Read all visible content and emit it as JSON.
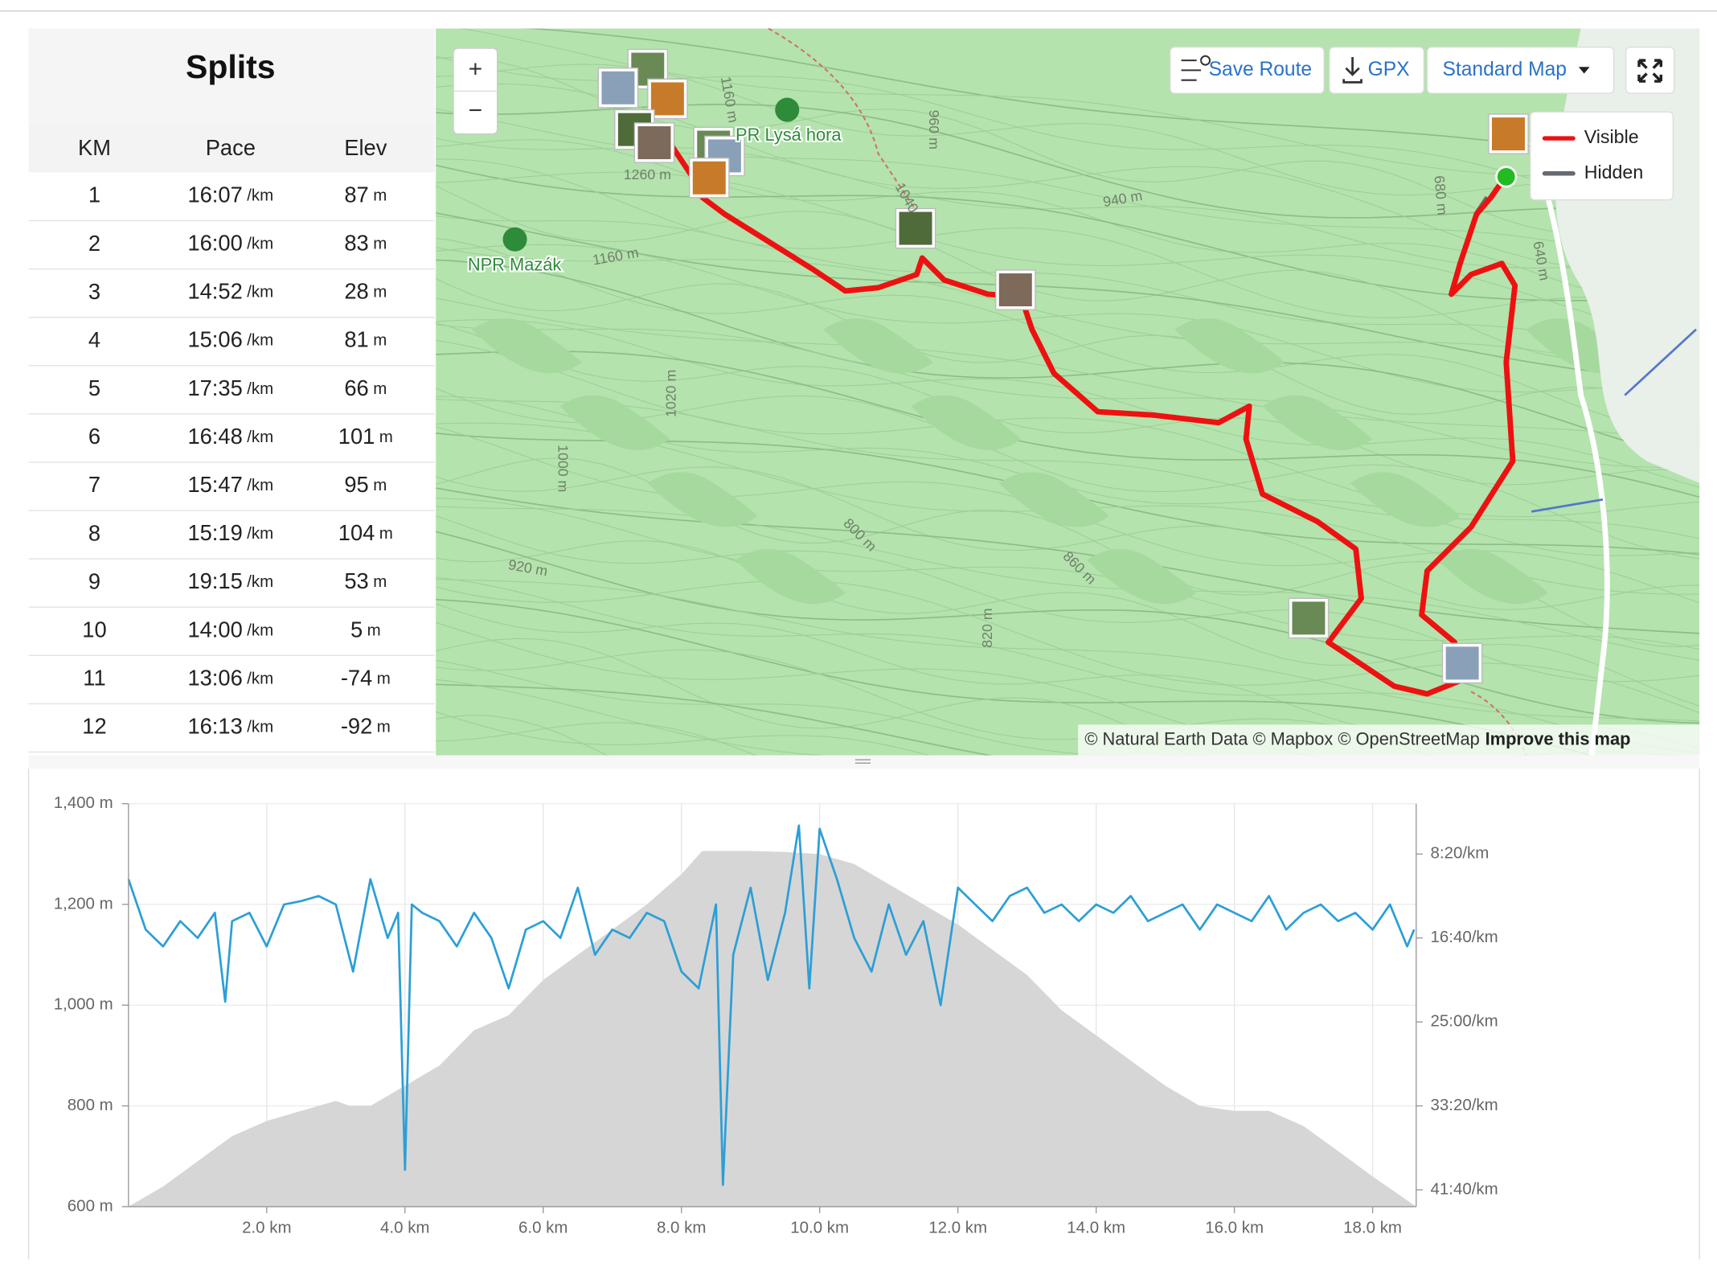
{
  "splits": {
    "title": "Splits",
    "headers": [
      "KM",
      "Pace",
      "Elev"
    ],
    "pace_unit": "/km",
    "elev_unit": "m",
    "rows": [
      [
        "1",
        "16:07",
        "87"
      ],
      [
        "2",
        "16:00",
        "83"
      ],
      [
        "3",
        "14:52",
        "28"
      ],
      [
        "4",
        "15:06",
        "81"
      ],
      [
        "5",
        "17:35",
        "66"
      ],
      [
        "6",
        "16:48",
        "101"
      ],
      [
        "7",
        "15:47",
        "95"
      ],
      [
        "8",
        "15:19",
        "104"
      ],
      [
        "9",
        "19:15",
        "53"
      ],
      [
        "10",
        "14:00",
        "5"
      ],
      [
        "11",
        "13:06",
        "-74"
      ],
      [
        "12",
        "16:13",
        "-92"
      ]
    ]
  },
  "map": {
    "zoom_in": "+",
    "zoom_out": "−",
    "buttons": [
      "Save Route",
      "GPX",
      "Standard Map"
    ],
    "legend": [
      {
        "name": "Visible",
        "color": "#ee1111"
      },
      {
        "name": "Hidden",
        "color": "#666a70"
      }
    ],
    "places": [
      "PR Lysá hora",
      "NPR Mazák"
    ],
    "contour_labels": [
      "1160 m",
      "1260 m",
      "1160 m",
      "960 m",
      "1040",
      "940 m",
      "680 m",
      "640 m",
      "1020 m",
      "1000 m",
      "800 m",
      "860 m",
      "920 m",
      "820 m"
    ],
    "attribution": "© Natural Earth Data © Mapbox © OpenStreetMap",
    "improve": "Improve this map"
  },
  "chart_data": {
    "type": "line",
    "xlim": [
      0,
      18.63
    ],
    "xticks": [
      {
        "value": 2,
        "label": "2.0 km"
      },
      {
        "value": 4,
        "label": "4.0 km"
      },
      {
        "value": 6,
        "label": "6.0 km"
      },
      {
        "value": 8,
        "label": "8.0 km"
      },
      {
        "value": 10,
        "label": "10.0 km"
      },
      {
        "value": 12,
        "label": "12.0 km"
      },
      {
        "value": 14,
        "label": "14.0 km"
      },
      {
        "value": 16,
        "label": "16.0 km"
      },
      {
        "value": 18,
        "label": "18.0 km"
      }
    ],
    "ylim": [
      600,
      1400
    ],
    "yticks": [
      {
        "value": 600,
        "label": "600 m"
      },
      {
        "value": 800,
        "label": "800 m"
      },
      {
        "value": 1000,
        "label": "1,000 m"
      },
      {
        "value": 1200,
        "label": "1,200 m"
      },
      {
        "value": 1400,
        "label": "1,400 m"
      }
    ],
    "y2lim": [
      200,
      2600
    ],
    "y2_inverted": true,
    "y2ticks": [
      {
        "value": 500,
        "label": "8:20/km"
      },
      {
        "value": 1000,
        "label": "16:40/km"
      },
      {
        "value": 1500,
        "label": "25:00/km"
      },
      {
        "value": 2000,
        "label": "33:20/km"
      },
      {
        "value": 2500,
        "label": "41:40/km"
      }
    ],
    "grid": true,
    "series": [
      {
        "type": "area",
        "color": "#d6d6d6",
        "x": [
          0,
          0.5,
          1,
          1.5,
          2,
          2.5,
          3,
          3.2,
          3.5,
          4,
          4.5,
          5,
          5.5,
          6,
          6.5,
          7,
          7.5,
          8,
          8.3,
          9,
          9.5,
          10,
          10.5,
          11,
          11.5,
          12,
          12.5,
          13,
          13.5,
          14,
          14.5,
          15,
          15.5,
          16,
          16.5,
          17,
          17.5,
          18,
          18.63
        ],
        "values": [
          600,
          640,
          690,
          740,
          770,
          790,
          810,
          800,
          800,
          840,
          880,
          950,
          980,
          1050,
          1100,
          1150,
          1200,
          1260,
          1306,
          1306,
          1304,
          1300,
          1280,
          1240,
          1200,
          1160,
          1110,
          1060,
          990,
          940,
          890,
          840,
          800,
          790,
          790,
          760,
          710,
          660,
          600
        ]
      },
      {
        "type": "line",
        "color": "#2c9fd6",
        "axis": "y2",
        "x": [
          0,
          0.25,
          0.5,
          0.75,
          1,
          1.25,
          1.4,
          1.5,
          1.75,
          2,
          2.25,
          2.5,
          2.75,
          3,
          3.25,
          3.5,
          3.75,
          3.9,
          4,
          4.1,
          4.25,
          4.5,
          4.75,
          5,
          5.25,
          5.5,
          5.75,
          6,
          6.25,
          6.5,
          6.75,
          7,
          7.25,
          7.5,
          7.75,
          8,
          8.25,
          8.5,
          8.6,
          8.75,
          9,
          9.25,
          9.5,
          9.7,
          9.85,
          10,
          10.25,
          10.5,
          10.75,
          11,
          11.25,
          11.5,
          11.75,
          12,
          12.25,
          12.5,
          12.75,
          13,
          13.25,
          13.5,
          13.75,
          14,
          14.25,
          14.5,
          14.75,
          15,
          15.25,
          15.5,
          15.75,
          16,
          16.25,
          16.5,
          16.75,
          17,
          17.25,
          17.5,
          17.75,
          18,
          18.25,
          18.5,
          18.6
        ],
        "values": [
          650,
          950,
          1050,
          900,
          1000,
          850,
          1380,
          900,
          850,
          1050,
          800,
          780,
          750,
          800,
          1200,
          650,
          1000,
          850,
          2380,
          800,
          850,
          900,
          1050,
          850,
          1000,
          1300,
          950,
          900,
          1000,
          700,
          1100,
          950,
          1000,
          850,
          900,
          1200,
          1300,
          800,
          2470,
          1100,
          700,
          1250,
          850,
          330,
          1300,
          350,
          650,
          1000,
          1200,
          800,
          1100,
          900,
          1400,
          700,
          800,
          900,
          750,
          700,
          850,
          800,
          900,
          800,
          850,
          750,
          900,
          850,
          800,
          950,
          800,
          850,
          900,
          750,
          950,
          850,
          800,
          900,
          850,
          950,
          800,
          1050,
          950
        ]
      }
    ]
  }
}
